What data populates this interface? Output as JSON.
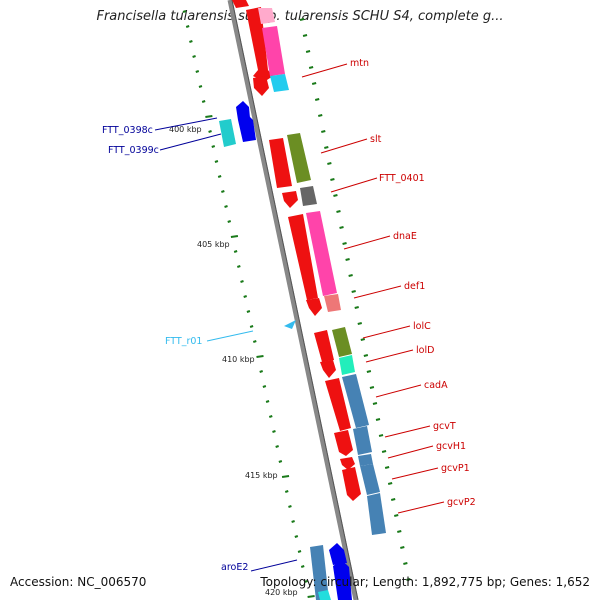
{
  "title": "Francisella tularensis subsp. tularensis SCHU S4, complete g...",
  "footer": {
    "accession": "Accession: NC_006570",
    "stats": "Topology: circular; Length: 1,892,775 bp; Genes: 1,652"
  },
  "scale_labels": [
    "400 kbp",
    "405 kbp",
    "410 kbp",
    "415 kbp",
    "420 kbp"
  ],
  "colors": {
    "backbone": "#8a8a8a",
    "ticks": "#1a7a1a",
    "label_forward": "#cc0000",
    "label_reverse": "#000099",
    "label_rna": "#33bbee"
  },
  "genes": [
    {
      "name": "mtn",
      "strand": "forward"
    },
    {
      "name": "FTT_0398c",
      "strand": "reverse"
    },
    {
      "name": "FTT_0399c",
      "strand": "reverse"
    },
    {
      "name": "slt",
      "strand": "forward"
    },
    {
      "name": "FTT_0401",
      "strand": "forward"
    },
    {
      "name": "dnaE",
      "strand": "forward"
    },
    {
      "name": "def1",
      "strand": "forward"
    },
    {
      "name": "FTT_r01",
      "strand": "rna"
    },
    {
      "name": "lolC",
      "strand": "forward"
    },
    {
      "name": "lolD",
      "strand": "forward"
    },
    {
      "name": "cadA",
      "strand": "forward"
    },
    {
      "name": "gcvT",
      "strand": "forward"
    },
    {
      "name": "gcvH1",
      "strand": "forward"
    },
    {
      "name": "gcvP1",
      "strand": "forward"
    },
    {
      "name": "gcvP2",
      "strand": "forward"
    },
    {
      "name": "aroE2",
      "strand": "reverse"
    }
  ]
}
